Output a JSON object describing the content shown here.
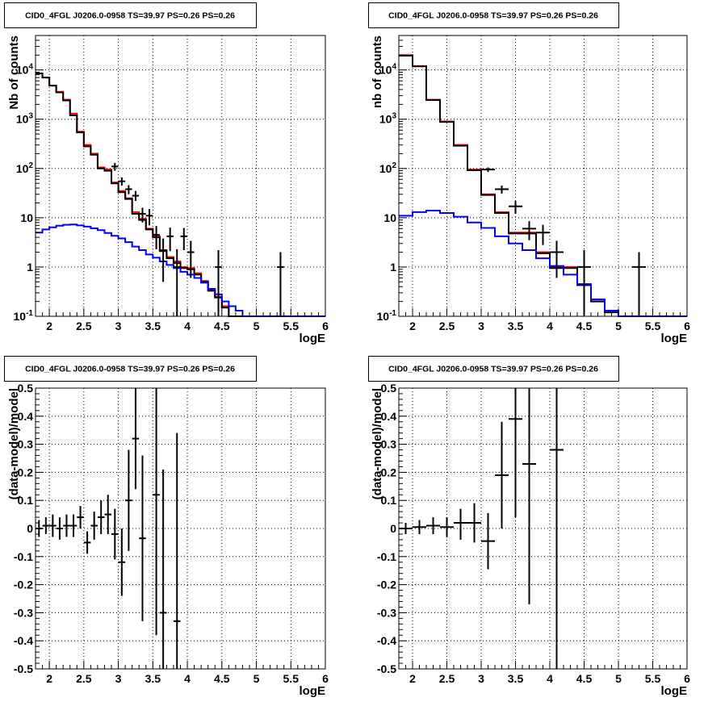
{
  "chart_data": [
    {
      "type": "step-histogram",
      "title": "CID0_4FGL J0206.0-0958 TS=39.97 PS=0.26 PS=0.26",
      "xlabel": "logE",
      "ylabel": "Nb of counts",
      "yscale": "log",
      "xlim": [
        1.8,
        6.0
      ],
      "ylim": [
        0.1,
        50000
      ],
      "xticks": [
        2,
        2.5,
        3,
        3.5,
        4,
        4.5,
        5,
        5.5,
        6
      ],
      "xtick_labels": [
        "2",
        "2.5",
        "3",
        "3.5",
        "4",
        "4.5",
        "5",
        "5.5",
        "6"
      ],
      "yticks": [
        0.1,
        1,
        10,
        100,
        1000,
        10000
      ],
      "ytick_labels": [
        "10^-1",
        "1",
        "10",
        "10^2",
        "10^3",
        "10^4"
      ],
      "grid": true,
      "bin_edges": [
        1.8,
        1.9,
        2.0,
        2.1,
        2.2,
        2.3,
        2.4,
        2.5,
        2.6,
        2.7,
        2.8,
        2.9,
        3.0,
        3.1,
        3.2,
        3.3,
        3.4,
        3.5,
        3.6,
        3.7,
        3.8,
        3.9,
        4.0,
        4.1,
        4.2,
        4.3,
        4.4,
        4.5,
        4.6,
        4.7,
        4.8,
        4.9,
        5.0,
        5.1,
        5.2,
        5.3,
        5.4,
        5.5,
        5.6,
        5.7,
        5.8,
        5.9,
        6.0
      ],
      "series": [
        {
          "color": "#ff0000",
          "style": "step",
          "values": [
            8500,
            7000,
            4800,
            3600,
            2500,
            1300,
            560,
            300,
            200,
            105,
            95,
            52,
            35,
            25,
            13,
            9.5,
            6,
            4.2,
            2.2,
            1.6,
            1.3,
            1.0,
            0.95,
            0.75,
            0.52,
            0.35,
            0.25,
            0.16,
            0.1,
            0.1,
            0.1,
            0.1,
            0.1,
            0.1,
            0.1,
            0.1,
            0.1,
            0.1,
            0.1,
            0.1,
            0.1,
            0.1
          ]
        },
        {
          "color": "#000000",
          "style": "step",
          "values": [
            8500,
            7000,
            4800,
            3500,
            2400,
            1200,
            540,
            280,
            190,
            100,
            90,
            50,
            33,
            24,
            12,
            9,
            5.8,
            4.0,
            2.1,
            1.5,
            1.2,
            0.95,
            0.9,
            0.7,
            0.5,
            0.33,
            0.24,
            0.15,
            0.1,
            0.1,
            0.1,
            0.1,
            0.1,
            0.1,
            0.1,
            0.1,
            0.1,
            0.1,
            0.1,
            0.1,
            0.1,
            0.1
          ]
        },
        {
          "color": "#0000ff",
          "style": "step",
          "values": [
            5,
            5.8,
            6.4,
            6.9,
            7.2,
            7.3,
            7,
            6.6,
            6.1,
            5.6,
            4.9,
            4.3,
            3.8,
            3.2,
            2.6,
            2.2,
            1.8,
            1.55,
            1.3,
            1.1,
            0.95,
            0.8,
            0.7,
            0.6,
            0.48,
            0.36,
            0.28,
            0.2,
            0.16,
            0.13,
            0.1,
            0.1,
            0.1,
            0.1,
            0.1,
            0.1,
            0.1,
            0.1,
            0.1,
            0.1,
            0.1,
            0.1
          ]
        },
        {
          "color": "#000000",
          "style": "errorbars",
          "points": [
            {
              "x": 2.95,
              "y": 110,
              "xerr": 0.05,
              "ylo": 90,
              "yhi": 130
            },
            {
              "x": 3.05,
              "y": 55,
              "xerr": 0.05,
              "ylo": 45,
              "yhi": 66
            },
            {
              "x": 3.15,
              "y": 38,
              "xerr": 0.05,
              "ylo": 30,
              "yhi": 46
            },
            {
              "x": 3.25,
              "y": 28,
              "xerr": 0.05,
              "ylo": 22,
              "yhi": 35
            },
            {
              "x": 3.35,
              "y": 12,
              "xerr": 0.05,
              "ylo": 8,
              "yhi": 16
            },
            {
              "x": 3.45,
              "y": 11,
              "xerr": 0.05,
              "ylo": 7,
              "yhi": 15
            },
            {
              "x": 3.55,
              "y": 4.5,
              "xerr": 0.05,
              "ylo": 2.3,
              "yhi": 6.8
            },
            {
              "x": 3.65,
              "y": 2.2,
              "xerr": 0.05,
              "ylo": 0.5,
              "yhi": 3.8
            },
            {
              "x": 3.75,
              "y": 4.2,
              "xerr": 0.05,
              "ylo": 2.1,
              "yhi": 6.3
            },
            {
              "x": 3.85,
              "y": 1.0,
              "xerr": 0.05,
              "ylo": 0.1,
              "yhi": 2.3
            },
            {
              "x": 3.95,
              "y": 4.2,
              "xerr": 0.05,
              "ylo": 2.2,
              "yhi": 6.2
            },
            {
              "x": 4.05,
              "y": 2.0,
              "xerr": 0.05,
              "ylo": 0.6,
              "yhi": 3.4
            },
            {
              "x": 4.45,
              "y": 1.0,
              "xerr": 0.05,
              "ylo": 0.1,
              "yhi": 2.2
            },
            {
              "x": 5.35,
              "y": 1.0,
              "xerr": 0.05,
              "ylo": 0.1,
              "yhi": 2.0
            }
          ]
        }
      ]
    },
    {
      "type": "step-histogram",
      "title": "CID0_4FGL J0206.0-0958 TS=39.97 PS=0.26 PS=0.26",
      "xlabel": "logE",
      "ylabel": "nb of counts",
      "yscale": "log",
      "xlim": [
        1.8,
        6.0
      ],
      "ylim": [
        0.1,
        50000
      ],
      "xticks": [
        2,
        2.5,
        3,
        3.5,
        4,
        4.5,
        5,
        5.5,
        6
      ],
      "xtick_labels": [
        "2",
        "2.5",
        "3",
        "3.5",
        "4",
        "4.5",
        "5",
        "5.5",
        "6"
      ],
      "yticks": [
        0.1,
        1,
        10,
        100,
        1000,
        10000
      ],
      "ytick_labels": [
        "10^-1",
        "1",
        "10",
        "10^2",
        "10^3",
        "10^4"
      ],
      "grid": true,
      "bin_edges": [
        1.8,
        2.0,
        2.2,
        2.4,
        2.6,
        2.8,
        3.0,
        3.2,
        3.4,
        3.6,
        3.8,
        4.0,
        4.2,
        4.4,
        4.6,
        4.8,
        5.0,
        5.2,
        5.4,
        5.6,
        5.8,
        6.0
      ],
      "series": [
        {
          "color": "#ff0000",
          "style": "step",
          "values": [
            20000,
            12000,
            2500,
            900,
            300,
            95,
            30,
            13,
            5,
            5,
            2,
            1,
            1,
            0.45,
            0.22,
            0.13,
            0.1,
            0.1,
            0.1,
            0.1,
            0.1
          ]
        },
        {
          "color": "#000000",
          "style": "step",
          "values": [
            19500,
            11800,
            2450,
            880,
            290,
            92,
            29,
            12.5,
            4.8,
            4.8,
            1.9,
            0.95,
            0.95,
            0.43,
            0.2,
            0.12,
            0.1,
            0.1,
            0.1,
            0.1,
            0.1
          ]
        },
        {
          "color": "#0000ff",
          "style": "step",
          "values": [
            11,
            13,
            14,
            12.5,
            10.5,
            8,
            6.2,
            4.2,
            3,
            2.2,
            1.5,
            1.05,
            0.7,
            0.45,
            0.22,
            0.13,
            0.1,
            0.1,
            0.1,
            0.1,
            0.1
          ]
        },
        {
          "color": "#000000",
          "style": "errorbars",
          "points": [
            {
              "x": 3.1,
              "y": 95,
              "xerr": 0.1,
              "ylo": 85,
              "yhi": 105
            },
            {
              "x": 3.3,
              "y": 38,
              "xerr": 0.1,
              "ylo": 31,
              "yhi": 45
            },
            {
              "x": 3.5,
              "y": 17,
              "xerr": 0.1,
              "ylo": 12,
              "yhi": 22
            },
            {
              "x": 3.7,
              "y": 6,
              "xerr": 0.1,
              "ylo": 3.5,
              "yhi": 8.5
            },
            {
              "x": 3.9,
              "y": 5,
              "xerr": 0.1,
              "ylo": 2.8,
              "yhi": 7.2
            },
            {
              "x": 4.1,
              "y": 2,
              "xerr": 0.1,
              "ylo": 0.6,
              "yhi": 3.4
            },
            {
              "x": 4.5,
              "y": 1,
              "xerr": 0.1,
              "ylo": 0.1,
              "yhi": 2.2
            },
            {
              "x": 5.3,
              "y": 1,
              "xerr": 0.1,
              "ylo": 0.1,
              "yhi": 2.0
            }
          ]
        }
      ]
    },
    {
      "type": "scatter",
      "title": "CID0_4FGL J0206.0-0958 TS=39.97 PS=0.26 PS=0.26",
      "xlabel": "logE",
      "ylabel": "(data-model)/model",
      "yscale": "linear",
      "xlim": [
        1.8,
        6.0
      ],
      "ylim": [
        -0.5,
        0.5
      ],
      "xticks": [
        2,
        2.5,
        3,
        3.5,
        4,
        4.5,
        5,
        5.5,
        6
      ],
      "xtick_labels": [
        "2",
        "2.5",
        "3",
        "3.5",
        "4",
        "4.5",
        "5",
        "5.5",
        "6"
      ],
      "yticks": [
        -0.5,
        -0.4,
        -0.3,
        -0.2,
        -0.1,
        0,
        0.1,
        0.2,
        0.3,
        0.4,
        0.5
      ],
      "ytick_labels": [
        "-0.5",
        "-0.4",
        "-0.3",
        "-0.2",
        "-0.1",
        "0",
        "0.1",
        "0.2",
        "0.3",
        "0.4",
        "0.5"
      ],
      "grid": true,
      "series": [
        {
          "color": "#000000",
          "style": "errorbars",
          "points": [
            {
              "x": 1.85,
              "y": 0.0,
              "xerr": 0.05,
              "ylo": -0.03,
              "yhi": 0.03
            },
            {
              "x": 1.95,
              "y": 0.01,
              "xerr": 0.05,
              "ylo": -0.02,
              "yhi": 0.04
            },
            {
              "x": 2.05,
              "y": 0.01,
              "xerr": 0.05,
              "ylo": -0.03,
              "yhi": 0.05
            },
            {
              "x": 2.15,
              "y": 0.0,
              "xerr": 0.05,
              "ylo": -0.04,
              "yhi": 0.04
            },
            {
              "x": 2.25,
              "y": 0.01,
              "xerr": 0.05,
              "ylo": -0.03,
              "yhi": 0.05
            },
            {
              "x": 2.35,
              "y": 0.01,
              "xerr": 0.05,
              "ylo": -0.03,
              "yhi": 0.05
            },
            {
              "x": 2.45,
              "y": 0.04,
              "xerr": 0.05,
              "ylo": 0.0,
              "yhi": 0.08
            },
            {
              "x": 2.55,
              "y": -0.05,
              "xerr": 0.05,
              "ylo": -0.09,
              "yhi": -0.01
            },
            {
              "x": 2.65,
              "y": 0.01,
              "xerr": 0.05,
              "ylo": -0.04,
              "yhi": 0.06
            },
            {
              "x": 2.75,
              "y": 0.04,
              "xerr": 0.05,
              "ylo": -0.02,
              "yhi": 0.1
            },
            {
              "x": 2.85,
              "y": 0.05,
              "xerr": 0.05,
              "ylo": -0.02,
              "yhi": 0.12
            },
            {
              "x": 2.95,
              "y": -0.02,
              "xerr": 0.05,
              "ylo": -0.11,
              "yhi": 0.07
            },
            {
              "x": 3.05,
              "y": -0.12,
              "xerr": 0.05,
              "ylo": -0.24,
              "yhi": 0.0
            },
            {
              "x": 3.15,
              "y": 0.1,
              "xerr": 0.05,
              "ylo": -0.08,
              "yhi": 0.28
            },
            {
              "x": 3.25,
              "y": 0.32,
              "xerr": 0.05,
              "ylo": 0.14,
              "yhi": 0.5
            },
            {
              "x": 3.35,
              "y": -0.035,
              "xerr": 0.05,
              "ylo": -0.33,
              "yhi": 0.26
            },
            {
              "x": 3.55,
              "y": 0.12,
              "xerr": 0.05,
              "ylo": -0.38,
              "yhi": 0.5
            },
            {
              "x": 3.65,
              "y": -0.3,
              "xerr": 0.05,
              "ylo": -0.5,
              "yhi": 0.21
            },
            {
              "x": 3.85,
              "y": -0.33,
              "xerr": 0.05,
              "ylo": -0.5,
              "yhi": 0.34
            }
          ]
        }
      ]
    },
    {
      "type": "scatter",
      "title": "CID0_4FGL J0206.0-0958 TS=39.97 PS=0.26 PS=0.26",
      "xlabel": "logE",
      "ylabel": "(data-model)/model",
      "yscale": "linear",
      "xlim": [
        1.8,
        6.0
      ],
      "ylim": [
        -0.5,
        0.5
      ],
      "xticks": [
        2,
        2.5,
        3,
        3.5,
        4,
        4.5,
        5,
        5.5,
        6
      ],
      "xtick_labels": [
        "2",
        "2.5",
        "3",
        "3.5",
        "4",
        "4.5",
        "5",
        "5.5",
        "6"
      ],
      "yticks": [
        -0.5,
        -0.4,
        -0.3,
        -0.2,
        -0.1,
        0,
        0.1,
        0.2,
        0.3,
        0.4,
        0.5
      ],
      "ytick_labels": [
        "-0.5",
        "-0.4",
        "-0.3",
        "-0.2",
        "-0.1",
        "0",
        "0.1",
        "0.2",
        "0.3",
        "0.4",
        "0.5"
      ],
      "grid": true,
      "series": [
        {
          "color": "#000000",
          "style": "errorbars",
          "points": [
            {
              "x": 1.9,
              "y": 0.0,
              "xerr": 0.1,
              "ylo": -0.02,
              "yhi": 0.02
            },
            {
              "x": 2.1,
              "y": 0.005,
              "xerr": 0.1,
              "ylo": -0.02,
              "yhi": 0.03
            },
            {
              "x": 2.3,
              "y": 0.01,
              "xerr": 0.1,
              "ylo": -0.02,
              "yhi": 0.04
            },
            {
              "x": 2.5,
              "y": 0.005,
              "xerr": 0.1,
              "ylo": -0.03,
              "yhi": 0.04
            },
            {
              "x": 2.7,
              "y": 0.02,
              "xerr": 0.1,
              "ylo": -0.04,
              "yhi": 0.07
            },
            {
              "x": 2.9,
              "y": 0.02,
              "xerr": 0.1,
              "ylo": -0.05,
              "yhi": 0.09
            },
            {
              "x": 3.1,
              "y": -0.045,
              "xerr": 0.1,
              "ylo": -0.145,
              "yhi": 0.055
            },
            {
              "x": 3.3,
              "y": 0.19,
              "xerr": 0.1,
              "ylo": 0.0,
              "yhi": 0.38
            },
            {
              "x": 3.5,
              "y": 0.39,
              "xerr": 0.1,
              "ylo": 0.04,
              "yhi": 0.5
            },
            {
              "x": 3.7,
              "y": 0.23,
              "xerr": 0.1,
              "ylo": -0.27,
              "yhi": 0.5
            },
            {
              "x": 4.1,
              "y": 0.28,
              "xerr": 0.1,
              "ylo": -0.5,
              "yhi": 0.5
            }
          ]
        }
      ]
    }
  ]
}
